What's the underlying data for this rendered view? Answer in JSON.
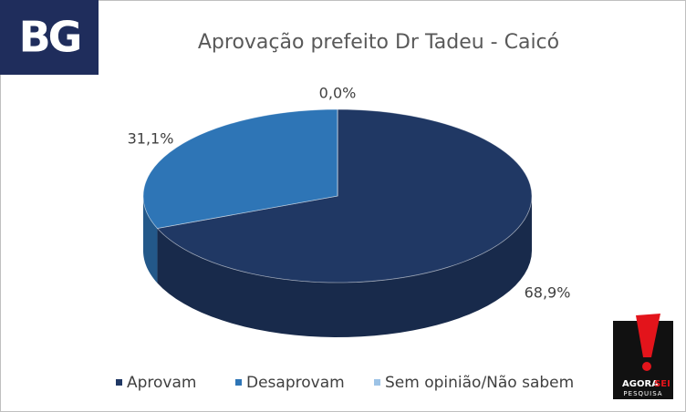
{
  "branding": {
    "left": "BG",
    "right": [
      "AGORA",
      "SEI",
      "PESQUISA"
    ]
  },
  "chart_data": {
    "type": "pie",
    "title": "Aprovação prefeito Dr Tadeu - Caicó",
    "categories": [
      "Aprovam",
      "Desaprovam",
      "Sem opinião/Não sabem"
    ],
    "values": [
      68.9,
      31.1,
      0.0
    ],
    "value_labels": [
      "68,9%",
      "31,1%",
      "0,0%"
    ],
    "colors": [
      "#203864",
      "#2e75b6",
      "#9dc3e6"
    ],
    "legend": "bottom"
  }
}
